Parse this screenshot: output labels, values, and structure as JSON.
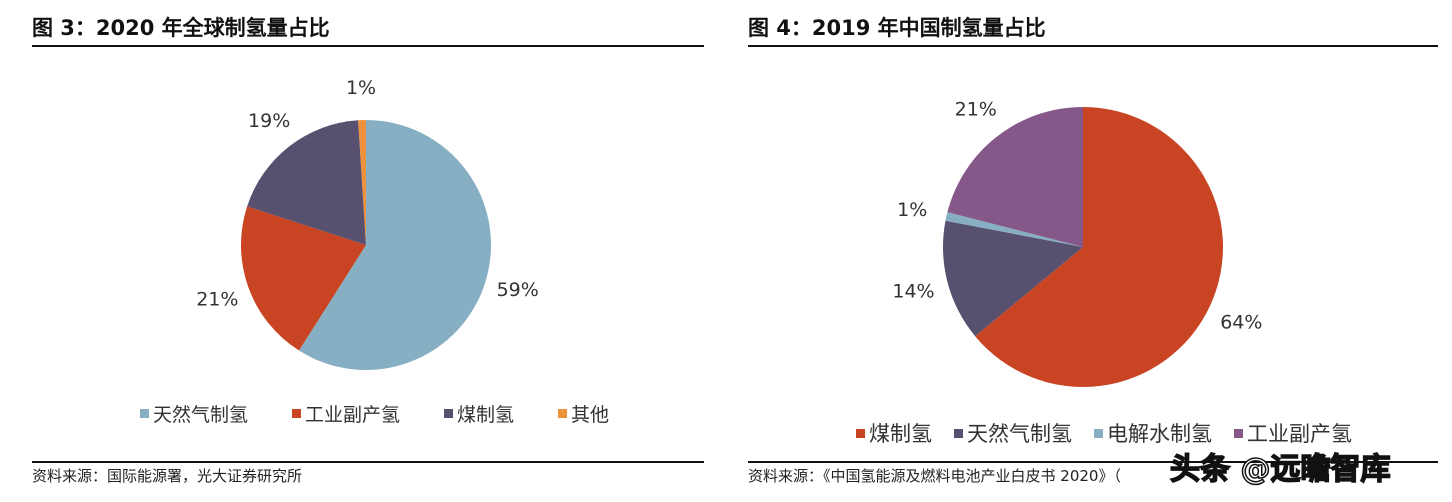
{
  "chart_data": [
    {
      "type": "pie",
      "title": "图 3：2020 年全球制氢量占比",
      "categories": [
        "天然气制氢",
        "工业副产氢",
        "煤制氢",
        "其他"
      ],
      "values": [
        59,
        21,
        19,
        1
      ],
      "labels": [
        "59%",
        "21%",
        "19%",
        "1%"
      ],
      "colors": [
        "#87AFC3",
        "#C84423",
        "#58506F",
        "#F0913E"
      ],
      "legend": "bottom",
      "source": "资料来源：国际能源署，光大证券研究所"
    },
    {
      "type": "pie",
      "title": "图 4：2019 年中国制氢量占比",
      "categories": [
        "煤制氢",
        "天然气制氢",
        "电解水制氢",
        "工业副产氢"
      ],
      "values": [
        64,
        14,
        1,
        21
      ],
      "labels": [
        "64%",
        "14%",
        "1%",
        "21%"
      ],
      "colors": [
        "#C84423",
        "#58506F",
        "#87AFC3",
        "#86588A"
      ],
      "legend": "bottom",
      "source": "资料来源：《中国氢能源及燃料电池产业白皮书 2020》（"
    }
  ],
  "watermark": "头条 @远瞻智库"
}
